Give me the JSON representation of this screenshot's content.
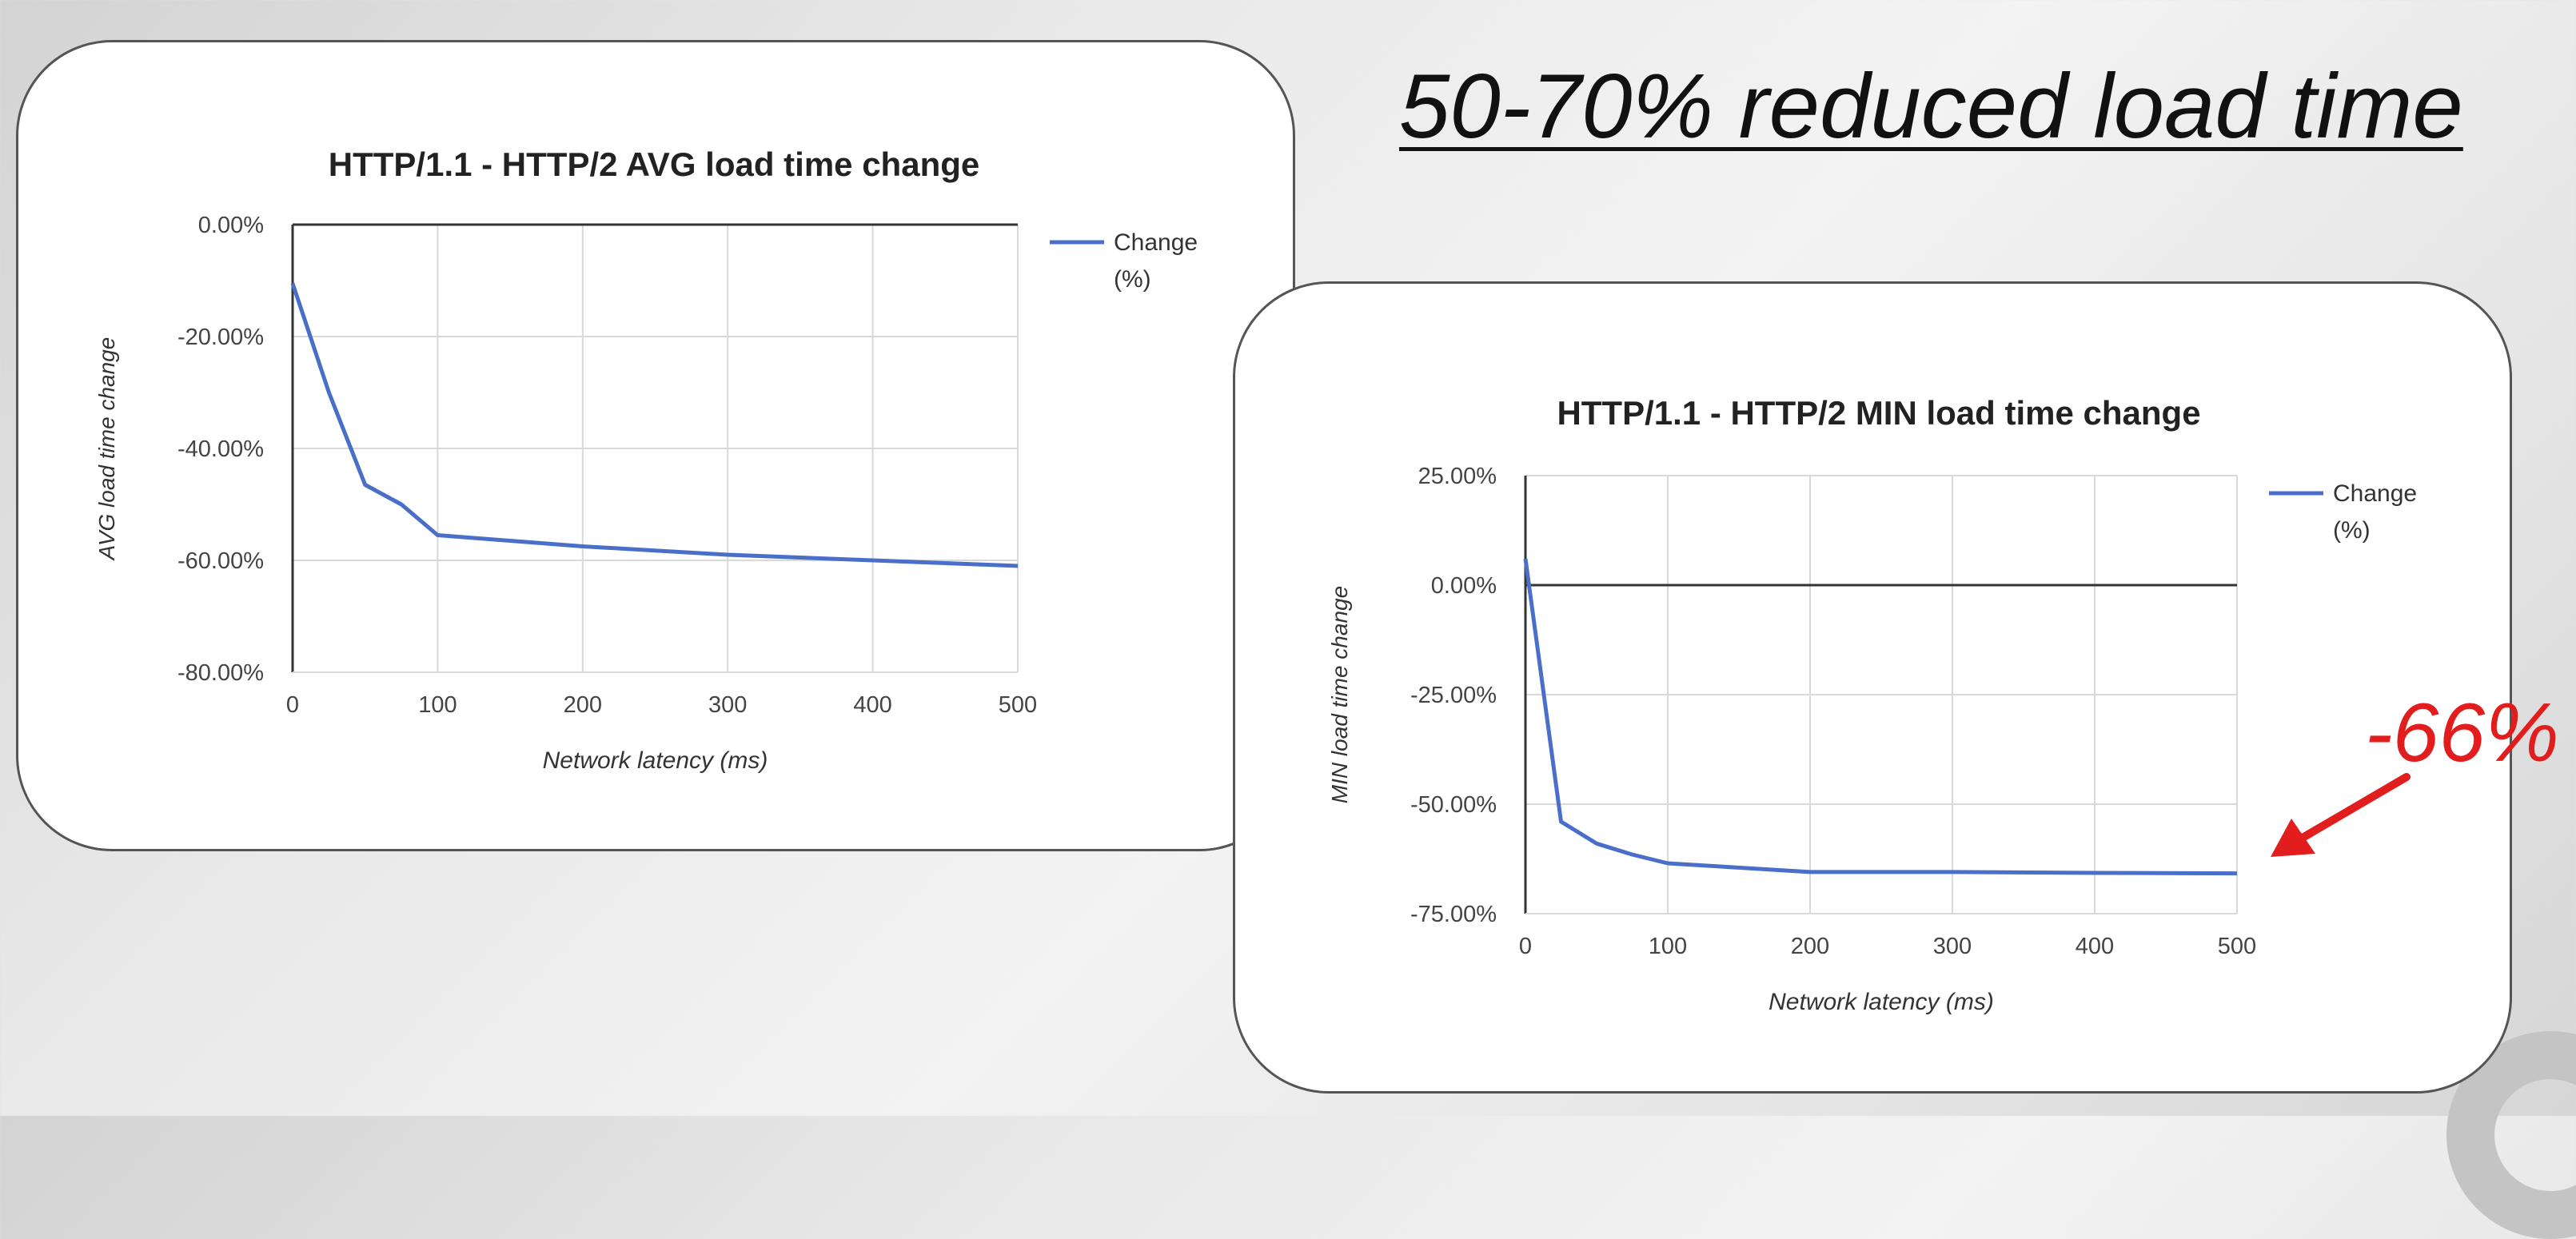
{
  "headline": "50-70% reduced load time",
  "callout": {
    "text": "-66%",
    "color": "#e11d1d"
  },
  "chart_data": [
    {
      "type": "line",
      "title": "HTTP/1.1 - HTTP/2 AVG load time change",
      "xlabel": "Network latency (ms)",
      "ylabel": "AVG load time change",
      "xlim": [
        0,
        500
      ],
      "ylim": [
        -80,
        0
      ],
      "x_ticks": [
        "0",
        "100",
        "200",
        "300",
        "400",
        "500"
      ],
      "y_ticks": [
        "0.00%",
        "-20.00%",
        "-40.00%",
        "-60.00%",
        "-80.00%"
      ],
      "legend": {
        "label": "Change\n(%)",
        "position": "right"
      },
      "grid": true,
      "series": [
        {
          "name": "Change (%)",
          "color": "#4a6fc9",
          "x": [
            0,
            25,
            50,
            75,
            100,
            200,
            300,
            400,
            500
          ],
          "y": [
            -10.5,
            -30,
            -46.5,
            -50,
            -55.5,
            -57.5,
            -59,
            -60,
            -61
          ]
        }
      ]
    },
    {
      "type": "line",
      "title": "HTTP/1.1 - HTTP/2 MIN load time change",
      "xlabel": "Network latency (ms)",
      "ylabel": "MIN load time change",
      "xlim": [
        0,
        500
      ],
      "ylim": [
        -75,
        25
      ],
      "x_ticks": [
        "0",
        "100",
        "200",
        "300",
        "400",
        "500"
      ],
      "y_ticks": [
        "25.00%",
        "0.00%",
        "-25.00%",
        "-50.00%",
        "-75.00%"
      ],
      "legend": {
        "label": "Change\n(%)",
        "position": "right"
      },
      "grid": true,
      "series": [
        {
          "name": "Change (%)",
          "color": "#4a6fc9",
          "x": [
            0,
            25,
            50,
            75,
            100,
            200,
            300,
            400,
            500
          ],
          "y": [
            6,
            -54,
            -59,
            -61.5,
            -63.5,
            -65.5,
            -65.5,
            -65.7,
            -65.8
          ]
        }
      ]
    }
  ]
}
